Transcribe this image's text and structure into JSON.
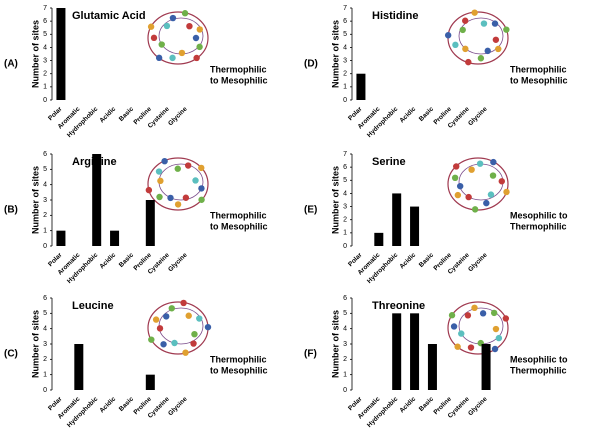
{
  "chart_data": [
    {
      "type": "bar",
      "panel": "(A)",
      "title": "Glutamic Acid",
      "ylabel": "Number of sites",
      "annotation": [
        "Thermophilic",
        "to Mesophilic"
      ],
      "categories": [
        "Polar",
        "Aromatic",
        "Hydrophobic",
        "Acidic",
        "Basic",
        "Proline",
        "Cysteine",
        "Glycine"
      ],
      "values": [
        7,
        0,
        0,
        0,
        0,
        0,
        0,
        0
      ],
      "color": "#000000",
      "ylim": [
        0,
        7
      ],
      "yticks": [
        0,
        1,
        2,
        3,
        4,
        5,
        6,
        7
      ]
    },
    {
      "type": "bar",
      "panel": "(D)",
      "title": "Histidine",
      "ylabel": "Number of sites",
      "annotation": [
        "Thermophilic",
        "to Mesophilic"
      ],
      "categories": [
        "Polar",
        "Aromatic",
        "Hydrophobic",
        "Acidic",
        "Basic",
        "Proline",
        "Cysteine",
        "Glycine"
      ],
      "values": [
        2,
        0,
        0,
        0,
        0,
        0,
        0,
        0
      ],
      "color": "#000000",
      "ylim": [
        0,
        7
      ],
      "yticks": [
        0,
        1,
        2,
        3,
        4,
        5,
        6,
        7
      ]
    },
    {
      "type": "bar",
      "panel": "(B)",
      "title": "Arginine",
      "ylabel": "Number of sites",
      "annotation": [
        "Thermophilic",
        "to Mesophilic"
      ],
      "categories": [
        "Polar",
        "Aromatic",
        "Hydrophobic",
        "Acidic",
        "Basic",
        "Proline",
        "Cysteine",
        "Glycine"
      ],
      "values": [
        1,
        0,
        6,
        1,
        0,
        3,
        0,
        0
      ],
      "color": "#000000",
      "ylim": [
        0,
        6
      ],
      "yticks": [
        0,
        1,
        2,
        3,
        4,
        5,
        6
      ]
    },
    {
      "type": "bar",
      "panel": "(E)",
      "title": "Serine",
      "ylabel": "Number of sites",
      "annotation": [
        "Mesophilic to",
        "Thermophilic"
      ],
      "categories": [
        "Polar",
        "Aromatic",
        "Hydrophobic",
        "Acidic",
        "Basic",
        "Proline",
        "Cysteine",
        "Glycine"
      ],
      "values": [
        0,
        1,
        4,
        3,
        0,
        0,
        0,
        0
      ],
      "color": "#000000",
      "ylim": [
        0,
        7
      ],
      "yticks": [
        0,
        1,
        2,
        3,
        4,
        5,
        6,
        7
      ]
    },
    {
      "type": "bar",
      "panel": "(C)",
      "title": "Leucine",
      "ylabel": "Number of sites",
      "annotation": [
        "Thermophilic",
        "to Mesophilic"
      ],
      "categories": [
        "Polar",
        "Aromatic",
        "Hydrophobic",
        "Acidic",
        "Basic",
        "Proline",
        "Cysteine",
        "Glycine"
      ],
      "values": [
        0,
        3,
        0,
        0,
        0,
        1,
        0,
        0
      ],
      "color": "#000000",
      "ylim": [
        0,
        6
      ],
      "yticks": [
        0,
        1,
        2,
        3,
        4,
        5,
        6
      ]
    },
    {
      "type": "bar",
      "panel": "(F)",
      "title": "Threonine",
      "ylabel": "Number of sites",
      "annotation": [
        "Mesophilic to",
        "Thermophilic"
      ],
      "categories": [
        "Polar",
        "Aromatic",
        "Hydrophobic",
        "Acidic",
        "Basic",
        "Proline",
        "Cysteine",
        "Glycine"
      ],
      "values": [
        0,
        0,
        5,
        5,
        3,
        0,
        0,
        3
      ],
      "color": "#000000",
      "ylim": [
        0,
        6
      ],
      "yticks": [
        0,
        1,
        2,
        3,
        4,
        5,
        6
      ]
    }
  ]
}
